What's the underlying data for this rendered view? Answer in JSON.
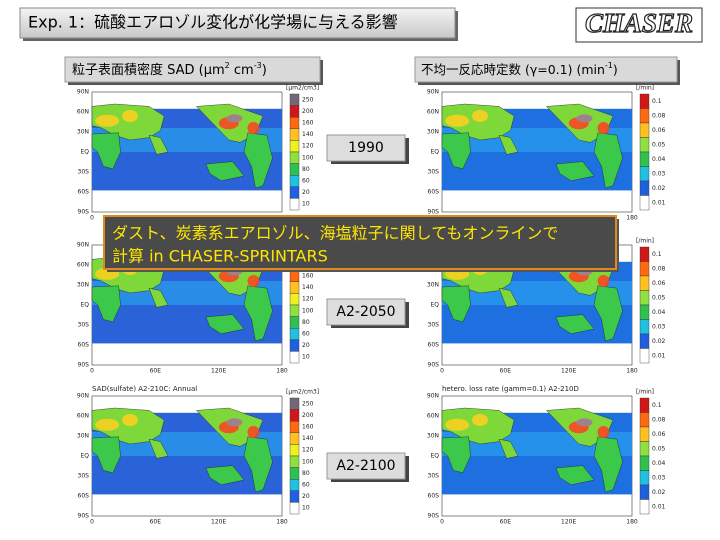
{
  "header": {
    "title": "Exp. 1：硫酸エアロゾル変化が化学場に与える影響",
    "logo": "CHASER"
  },
  "left_label": {
    "text": "粒子表面積密度 SAD (μm",
    "sup1": "2",
    "mid": " cm",
    "sup2": "-3",
    "end": ")"
  },
  "right_label": {
    "text": "不均一反応時定数 (γ=0.1) (min",
    "sup": "-1",
    "end": ")"
  },
  "rows": [
    {
      "year": "1990"
    },
    {
      "year": "A2-2050"
    },
    {
      "year": "A2-2100",
      "left_caption": "SAD(sulfate) A2-210C: Annual",
      "right_caption": "hetero. loss rate (gamm=0.1) A2-210D"
    }
  ],
  "left_colorbar": {
    "unit": "[μm2/cm3]",
    "ticks": [
      "250",
      "200",
      "160",
      "140",
      "120",
      "100",
      "80",
      "60",
      "20",
      "10"
    ]
  },
  "right_colorbar": {
    "unit": "[/min]",
    "ticks": [
      "0.1",
      "0.08",
      "0.06",
      "0.05",
      "0.04",
      "0.03",
      "0.02",
      "0.01"
    ]
  },
  "map_axes": {
    "lat": [
      "90N",
      "60N",
      "30N",
      "EQ",
      "30S",
      "60S",
      "90S"
    ],
    "lon": [
      "0",
      "60E",
      "120E",
      "180"
    ]
  },
  "overlay": {
    "line1": "ダスト、炭素系エアロゾル、海塩粒子に関してもオンラインで",
    "line2": "計算 in CHASER-SPRINTARS"
  }
}
